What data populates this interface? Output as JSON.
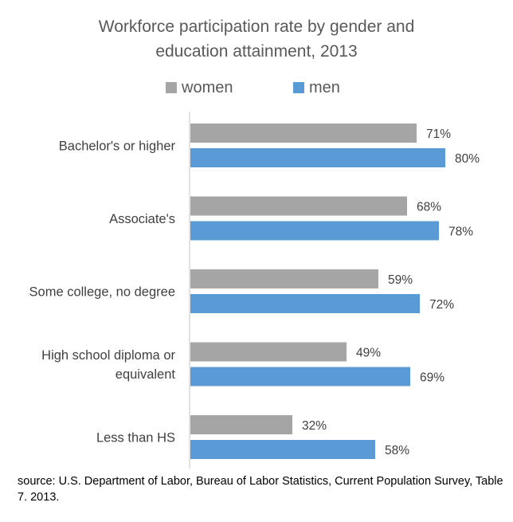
{
  "chart_data": {
    "type": "bar",
    "orientation": "horizontal",
    "title": "Workforce participation rate by gender and education attainment, 2013",
    "title_lines": [
      "Workforce participation rate by gender and",
      "education attainment, 2013"
    ],
    "categories": [
      "Bachelor's or higher",
      "Associate's",
      "Some college, no degree",
      "High school diploma or equivalent",
      "Less than HS"
    ],
    "category_label_lines": [
      [
        "Bachelor's or higher"
      ],
      [
        "Associate's"
      ],
      [
        "Some college, no degree"
      ],
      [
        "High school diploma or",
        "equivalent"
      ],
      [
        "Less than HS"
      ]
    ],
    "series": [
      {
        "name": "women",
        "color": "#a5a5a5",
        "values": [
          71,
          68,
          59,
          49,
          32
        ],
        "labels": [
          "71%",
          "68%",
          "59%",
          "49%",
          "32%"
        ]
      },
      {
        "name": "men",
        "color": "#5b9bd5",
        "values": [
          80,
          78,
          72,
          69,
          58
        ],
        "labels": [
          "80%",
          "78%",
          "72%",
          "69%",
          "58%"
        ]
      }
    ],
    "xlim": [
      0,
      100
    ],
    "value_suffix": "%",
    "grid": false,
    "legend_position": "top",
    "source": "source: U.S. Department of Labor, Bureau of Labor Statistics, Current Population Survey, Table 7. 2013."
  }
}
